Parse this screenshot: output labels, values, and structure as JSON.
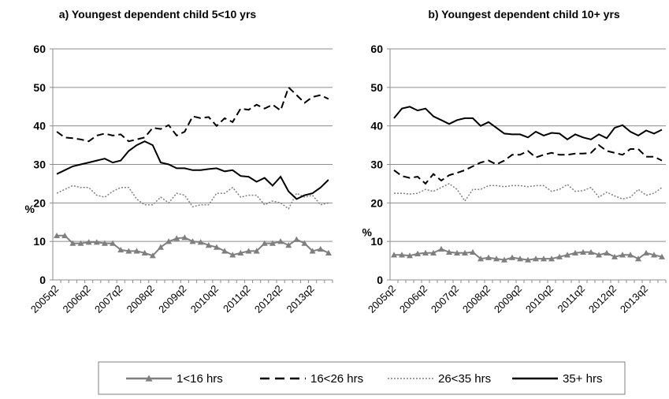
{
  "chart_data": [
    {
      "type": "line",
      "title": "a) Youngest dependent child  5<10  yrs",
      "y_label": "%",
      "categories": [
        "2005q2",
        null,
        null,
        null,
        "2006q2",
        null,
        null,
        null,
        "2007q2",
        null,
        null,
        null,
        "2008q2",
        null,
        null,
        null,
        "2009q2",
        null,
        null,
        null,
        "2010q2",
        null,
        null,
        null,
        "2011q2",
        null,
        null,
        null,
        "2012q2",
        null,
        null,
        null,
        "2013q2",
        null,
        null
      ],
      "ylim": [
        0,
        60
      ],
      "yticks": [
        0,
        10,
        20,
        30,
        40,
        50,
        60
      ],
      "grid": true,
      "series": [
        {
          "name": "1<16 hrs",
          "color": "#7f7f7f",
          "style": "solid",
          "marker": "triangle",
          "values": [
            11.5,
            11.5,
            9.5,
            9.5,
            9.8,
            9.8,
            9.5,
            9.5,
            7.8,
            7.5,
            7.5,
            7,
            6.3,
            8.5,
            10,
            10.8,
            11,
            10,
            9.8,
            9,
            8.5,
            7.5,
            6.5,
            7,
            7.5,
            7.5,
            9.5,
            9.5,
            10,
            9,
            10.5,
            9.5,
            7.5,
            8,
            7
          ]
        },
        {
          "name": "16<26 hrs",
          "color": "#000000",
          "style": "dashed",
          "values": [
            38.5,
            37,
            36.8,
            36.5,
            36,
            37.5,
            38,
            37.5,
            37.8,
            36,
            36.5,
            37,
            39.5,
            39.2,
            40.2,
            37.5,
            38.5,
            42.5,
            42,
            42.3,
            40,
            42,
            41,
            44.5,
            44.2,
            45.5,
            44.5,
            45.5,
            44,
            50,
            48,
            46,
            47.5,
            48,
            47
          ]
        },
        {
          "name": "26<35 hrs",
          "color": "#7f7f7f",
          "style": "dotted",
          "values": [
            22.5,
            23.5,
            24.5,
            24,
            24,
            22,
            21.5,
            23,
            24,
            24,
            21,
            19.5,
            19.5,
            21.5,
            20,
            22.5,
            22,
            19,
            19.5,
            19.5,
            22.5,
            22.5,
            24,
            21.5,
            22,
            22,
            19.5,
            20.5,
            20,
            18.5,
            22.5,
            21.5,
            22,
            19.5,
            20
          ]
        },
        {
          "name": "35+ hrs",
          "color": "#000000",
          "style": "solid",
          "values": [
            27.5,
            28.5,
            29.5,
            30,
            30.5,
            31,
            31.5,
            30.5,
            31,
            33.5,
            35,
            36,
            35,
            30.5,
            30,
            29,
            29,
            28.5,
            28.5,
            28.8,
            29,
            28.2,
            28.5,
            27,
            26.8,
            25.5,
            26.5,
            24.5,
            26.8,
            23,
            21,
            22,
            22.5,
            24,
            26
          ]
        }
      ]
    },
    {
      "type": "line",
      "title": "b) Youngest dependent child  10+  yrs",
      "y_label": "%",
      "categories": [
        "2005q2",
        null,
        null,
        null,
        "2006q2",
        null,
        null,
        null,
        "2007q2",
        null,
        null,
        null,
        "2008q2",
        null,
        null,
        null,
        "2009q2",
        null,
        null,
        null,
        "2010q2",
        null,
        null,
        null,
        "2011q2",
        null,
        null,
        null,
        "2012q2",
        null,
        null,
        null,
        "2013q2",
        null,
        null
      ],
      "ylim": [
        0,
        60
      ],
      "yticks": [
        0,
        10,
        20,
        30,
        40,
        50,
        60
      ],
      "grid": true,
      "series": [
        {
          "color": "#7f7f7f",
          "style": "solid",
          "marker": "triangle",
          "values": [
            6.5,
            6.5,
            6.3,
            6.8,
            7,
            7,
            8,
            7.2,
            7,
            7,
            7.2,
            5.5,
            5.8,
            5.5,
            5.2,
            5.8,
            5.5,
            5.2,
            5.5,
            5.5,
            5.5,
            6,
            6.5,
            7,
            7.2,
            7.2,
            6.5,
            7,
            6,
            6.5,
            6.5,
            5.5,
            7,
            6.5,
            6
          ]
        },
        {
          "color": "#000000",
          "style": "dashed",
          "values": [
            28.5,
            27,
            26.5,
            26.8,
            25,
            27.5,
            25.8,
            27.2,
            27.8,
            28.5,
            29.5,
            30.5,
            31,
            30,
            31,
            32.5,
            32.5,
            33.5,
            31.8,
            32.5,
            33,
            32.5,
            32.5,
            32.8,
            32.8,
            33,
            35,
            33.5,
            33,
            32.5,
            34,
            34,
            32,
            32,
            31
          ]
        },
        {
          "color": "#7f7f7f",
          "style": "dotted",
          "values": [
            22.5,
            22.5,
            22.3,
            22.5,
            23.5,
            23,
            24,
            25,
            23.5,
            20.5,
            23.5,
            23.5,
            24.5,
            24.5,
            24.2,
            24.5,
            24.5,
            24.2,
            24.5,
            24.5,
            23,
            23.5,
            24.8,
            23,
            23.2,
            24,
            21.5,
            22.8,
            21.8,
            21,
            21.5,
            23.5,
            22,
            22.5,
            24
          ]
        },
        {
          "color": "#000000",
          "style": "solid",
          "values": [
            42,
            44.5,
            45,
            44,
            44.5,
            42.5,
            41.5,
            40.5,
            41.5,
            42,
            42,
            40,
            41,
            39.5,
            38,
            37.8,
            37.8,
            37,
            38.5,
            37.5,
            38.2,
            38,
            36.5,
            37.8,
            37,
            36.5,
            37.8,
            36.8,
            39.5,
            40.2,
            38.5,
            37.5,
            38.8,
            38,
            39
          ]
        }
      ]
    }
  ]
}
